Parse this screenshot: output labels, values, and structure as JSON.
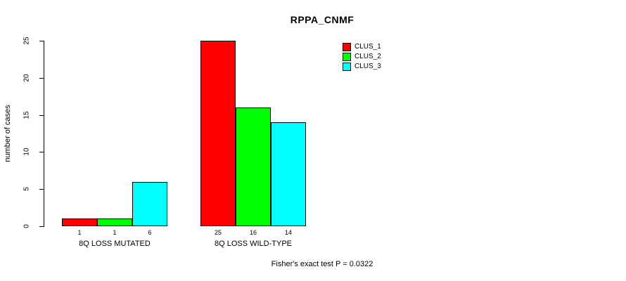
{
  "chart_data": {
    "type": "bar",
    "title": "RPPA_CNMF",
    "ylabel": "number of cases",
    "xlabel": "",
    "ylim": [
      0,
      25
    ],
    "yticks": [
      0,
      5,
      10,
      15,
      20,
      25
    ],
    "grid": false,
    "legend_position": "top-right",
    "categories": [
      "8Q LOSS MUTATED",
      "8Q LOSS WILD-TYPE"
    ],
    "series": [
      {
        "name": "CLUS_1",
        "color": "#ff0000",
        "values": [
          1,
          25
        ]
      },
      {
        "name": "CLUS_2",
        "color": "#00ff00",
        "values": [
          1,
          16
        ]
      },
      {
        "name": "CLUS_3",
        "color": "#00ffff",
        "values": [
          6,
          14
        ]
      }
    ],
    "bar_value_labels": [
      [
        "1",
        "1",
        "6"
      ],
      [
        "25",
        "16",
        "14"
      ]
    ],
    "annotation": "Fisher's exact test P = 0.0322"
  },
  "colors": {
    "axis": "#000000",
    "text": "#000000",
    "background": "#ffffff"
  }
}
